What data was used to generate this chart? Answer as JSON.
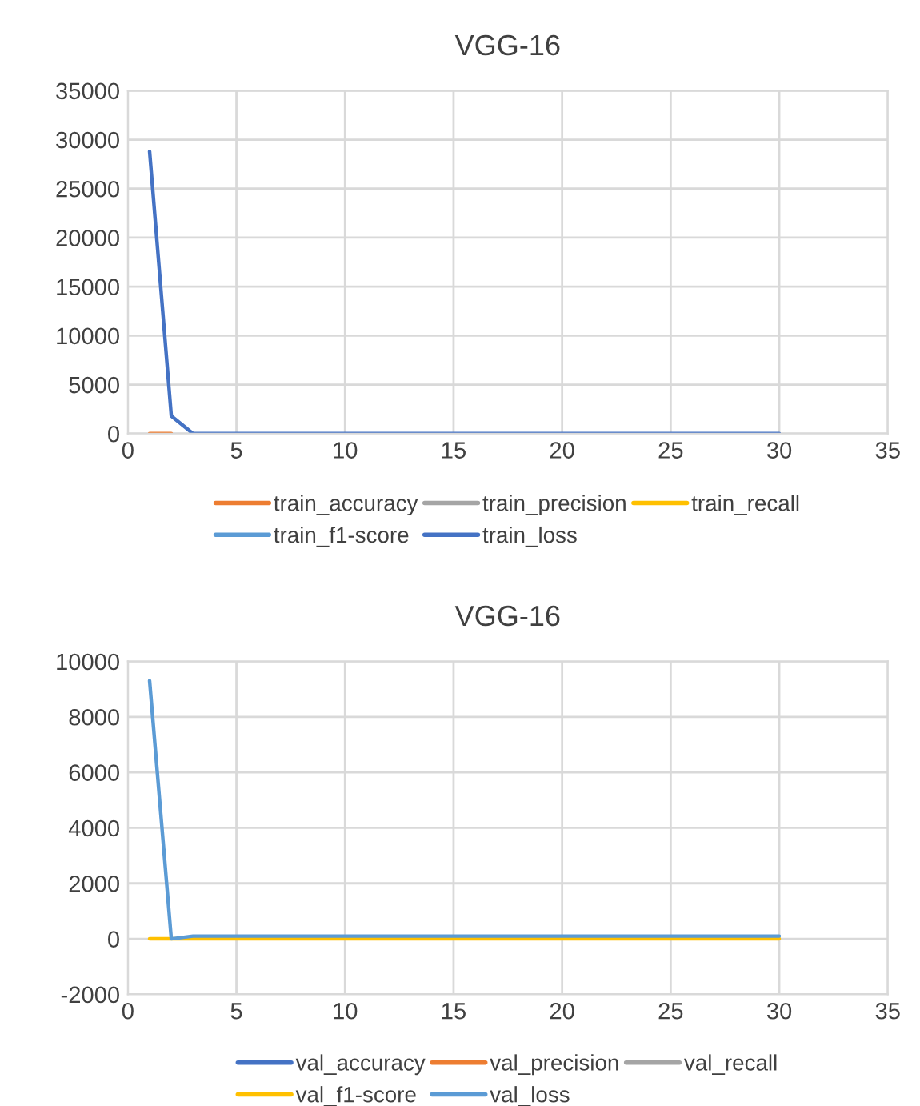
{
  "chart_data": [
    {
      "type": "line",
      "title": "VGG-16",
      "x": [
        1,
        2,
        3,
        4,
        5,
        6,
        7,
        8,
        9,
        10,
        11,
        12,
        13,
        14,
        15,
        16,
        17,
        18,
        19,
        20,
        21,
        22,
        23,
        24,
        25,
        26,
        27,
        28,
        29,
        30
      ],
      "series": [
        {
          "name": "train_accuracy",
          "color": "#ed7d31",
          "values": [
            0,
            0,
            null,
            null,
            null,
            null,
            null,
            null,
            null,
            null,
            null,
            null,
            null,
            null,
            null,
            null,
            null,
            null,
            null,
            null,
            null,
            null,
            null,
            null,
            null,
            null,
            null,
            null,
            null,
            null
          ]
        },
        {
          "name": "train_precision",
          "color": "#a5a5a5",
          "values": [
            null,
            null,
            null,
            null,
            null,
            null,
            null,
            null,
            null,
            null,
            null,
            null,
            null,
            null,
            null,
            null,
            null,
            null,
            null,
            null,
            null,
            null,
            null,
            null,
            null,
            null,
            null,
            null,
            null,
            null
          ]
        },
        {
          "name": "train_recall",
          "color": "#ffc000",
          "values": [
            null,
            null,
            null,
            null,
            null,
            null,
            null,
            null,
            null,
            null,
            null,
            null,
            null,
            null,
            null,
            null,
            null,
            null,
            null,
            null,
            null,
            null,
            null,
            null,
            null,
            null,
            null,
            null,
            null,
            null
          ]
        },
        {
          "name": "train_f1-score",
          "color": "#5b9bd5",
          "values": [
            null,
            null,
            null,
            null,
            null,
            null,
            null,
            null,
            null,
            null,
            null,
            null,
            null,
            null,
            null,
            null,
            null,
            null,
            null,
            null,
            null,
            null,
            null,
            null,
            null,
            null,
            null,
            null,
            null,
            null
          ]
        },
        {
          "name": "train_loss",
          "color": "#4472c4",
          "values": [
            28800,
            1800,
            0,
            0,
            0,
            0,
            0,
            0,
            0,
            0,
            0,
            0,
            0,
            0,
            0,
            0,
            0,
            0,
            0,
            0,
            0,
            0,
            0,
            0,
            0,
            0,
            0,
            0,
            0,
            0
          ]
        }
      ],
      "xlim": [
        0,
        35
      ],
      "xticks": [
        0,
        5,
        10,
        15,
        20,
        25,
        30,
        35
      ],
      "ylim": [
        0,
        35000
      ],
      "yticks": [
        0,
        5000,
        10000,
        15000,
        20000,
        25000,
        30000,
        35000
      ],
      "grid": true,
      "legend": "bottom"
    },
    {
      "type": "line",
      "title": "VGG-16",
      "x": [
        1,
        2,
        3,
        4,
        5,
        6,
        7,
        8,
        9,
        10,
        11,
        12,
        13,
        14,
        15,
        16,
        17,
        18,
        19,
        20,
        21,
        22,
        23,
        24,
        25,
        26,
        27,
        28,
        29,
        30
      ],
      "series": [
        {
          "name": "val_accuracy",
          "color": "#4472c4",
          "values": [
            null,
            null,
            null,
            null,
            null,
            null,
            null,
            null,
            null,
            null,
            null,
            null,
            null,
            null,
            null,
            null,
            null,
            null,
            null,
            null,
            null,
            null,
            null,
            null,
            null,
            null,
            null,
            null,
            null,
            null
          ]
        },
        {
          "name": "val_precision",
          "color": "#ed7d31",
          "values": [
            null,
            null,
            null,
            null,
            null,
            null,
            null,
            null,
            null,
            null,
            null,
            null,
            null,
            null,
            null,
            null,
            null,
            null,
            null,
            null,
            null,
            null,
            null,
            null,
            null,
            null,
            null,
            null,
            null,
            null
          ]
        },
        {
          "name": "val_recall",
          "color": "#a5a5a5",
          "values": [
            null,
            null,
            null,
            null,
            null,
            null,
            null,
            null,
            null,
            null,
            null,
            null,
            null,
            null,
            null,
            null,
            null,
            null,
            null,
            null,
            null,
            null,
            null,
            null,
            null,
            null,
            null,
            null,
            null,
            null
          ]
        },
        {
          "name": "val_f1-score",
          "color": "#ffc000",
          "values": [
            0,
            0,
            0,
            0,
            0,
            0,
            0,
            0,
            0,
            0,
            0,
            0,
            0,
            0,
            0,
            0,
            0,
            0,
            0,
            0,
            0,
            0,
            0,
            0,
            0,
            0,
            0,
            0,
            0,
            0
          ]
        },
        {
          "name": "val_loss",
          "color": "#5b9bd5",
          "values": [
            9300,
            0,
            100,
            100,
            100,
            100,
            100,
            100,
            100,
            100,
            100,
            100,
            100,
            100,
            100,
            100,
            100,
            100,
            100,
            100,
            100,
            100,
            100,
            100,
            100,
            100,
            100,
            100,
            100,
            100
          ]
        }
      ],
      "xlim": [
        0,
        35
      ],
      "xticks": [
        0,
        5,
        10,
        15,
        20,
        25,
        30,
        35
      ],
      "ylim": [
        -2000,
        10000
      ],
      "yticks": [
        -2000,
        0,
        2000,
        4000,
        6000,
        8000,
        10000
      ],
      "grid": true,
      "legend": "bottom"
    }
  ]
}
